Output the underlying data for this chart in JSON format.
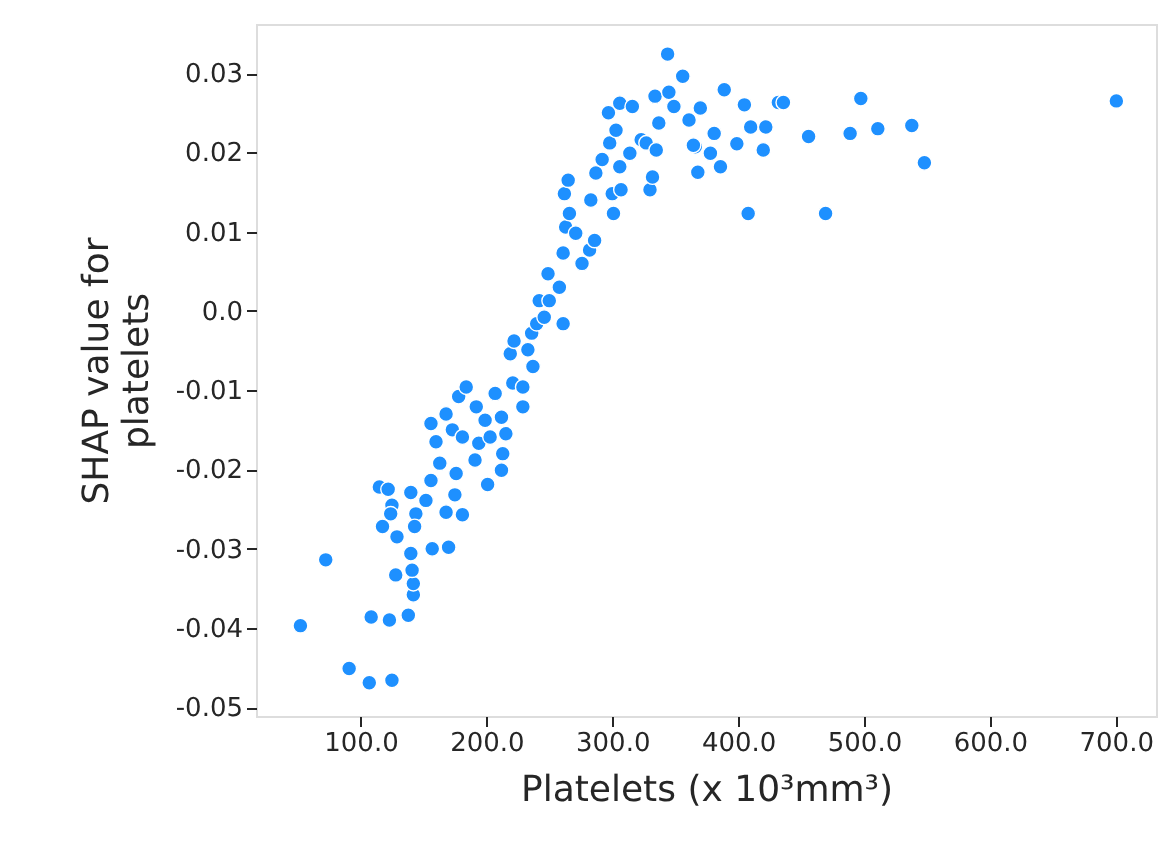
{
  "chart_data": {
    "type": "scatter",
    "xlabel": "Platelets (x 10³mm³)",
    "ylabel": "SHAP value for platelets",
    "xlim": [
      17,
      732
    ],
    "ylim": [
      -0.0511,
      0.0362
    ],
    "xticks": [
      {
        "value": 100,
        "label": "100.0"
      },
      {
        "value": 200,
        "label": "200.0"
      },
      {
        "value": 300,
        "label": "300.0"
      },
      {
        "value": 400,
        "label": "400.0"
      },
      {
        "value": 500,
        "label": "500.0"
      },
      {
        "value": 600,
        "label": "600.0"
      },
      {
        "value": 700,
        "label": "700.0"
      }
    ],
    "yticks": [
      -0.05,
      -0.04,
      -0.03,
      -0.02,
      -0.01,
      {
        "value": 0,
        "label": "0.0"
      },
      0.01,
      0.02,
      0.03
    ],
    "grid": false,
    "marker": "circle",
    "series": [
      {
        "color": "#1e90ff",
        "x": [
          52.3,
          72.4,
          91,
          107,
          125,
          108.5,
          123,
          138,
          128,
          142,
          142,
          141,
          140,
          157,
          170,
          129,
          117.5,
          115,
          122,
          125,
          124,
          140,
          144,
          143,
          156,
          168,
          181,
          175,
          152,
          156,
          160,
          163,
          173,
          178,
          184,
          192,
          191,
          201,
          194,
          199,
          207,
          212,
          213,
          215.5,
          212,
          176,
          181,
          168,
          203,
          221,
          219,
          222,
          229,
          229,
          233,
          237,
          236,
          240,
          242,
          246,
          249,
          250,
          258,
          261,
          261,
          263,
          262,
          265,
          266,
          271,
          276,
          282,
          286,
          283,
          287,
          292,
          298,
          297,
          306,
          303,
          306,
          300,
          301,
          307,
          314,
          316,
          323,
          330,
          332,
          327,
          335,
          337,
          334,
          344,
          345,
          349,
          356,
          361,
          366,
          368,
          389,
          405,
          410,
          399,
          386,
          422,
          420,
          432,
          436,
          408,
          456,
          469.5,
          489,
          497.5,
          511,
          538,
          548,
          700.5,
          364.5,
          378,
          381,
          370
        ],
        "values": [
          -0.0397,
          -0.0314,
          -0.0451,
          -0.0469,
          -0.0466,
          -0.0386,
          -0.039,
          -0.0384,
          -0.0333,
          -0.0358,
          -0.0344,
          -0.0327,
          -0.0306,
          -0.03,
          -0.0298,
          -0.0285,
          -0.0272,
          -0.0222,
          -0.0225,
          -0.0245,
          -0.0256,
          -0.0229,
          -0.0256,
          -0.0272,
          -0.0214,
          -0.0254,
          -0.0257,
          -0.0232,
          -0.0239,
          -0.0142,
          -0.0165,
          -0.0192,
          -0.015,
          -0.0108,
          -0.0096,
          -0.0121,
          -0.0188,
          -0.0219,
          -0.0167,
          -0.0138,
          -0.0104,
          -0.0201,
          -0.018,
          -0.0155,
          -0.0134,
          -0.0205,
          -0.0159,
          -0.013,
          -0.0159,
          -0.0091,
          -0.0054,
          -0.0038,
          -0.0121,
          -0.0096,
          -0.0049,
          -0.007,
          -0.0028,
          -0.0016,
          0.0013,
          -0.0008,
          0.0047,
          0.0013,
          0.003,
          -0.0016,
          0.0073,
          0.0106,
          0.0148,
          0.0165,
          0.0123,
          0.0098,
          0.006,
          0.0077,
          0.0089,
          0.014,
          0.0174,
          0.0191,
          0.0212,
          0.025,
          0.0262,
          0.0228,
          0.0182,
          0.0148,
          0.0123,
          0.0153,
          0.0199,
          0.0258,
          0.0216,
          0.0153,
          0.0169,
          0.0212,
          0.0203,
          0.0237,
          0.0271,
          0.0324,
          0.0276,
          0.0258,
          0.0296,
          0.0241,
          0.0207,
          0.0175,
          0.0279,
          0.026,
          0.0232,
          0.0211,
          0.0182,
          0.0232,
          0.0203,
          0.0263,
          0.0263,
          0.0123,
          0.022,
          0.0123,
          0.0224,
          0.0268,
          0.023,
          0.0234,
          0.0187,
          0.0265,
          0.0209,
          0.0199,
          0.0224,
          0.0256
        ]
      }
    ]
  }
}
